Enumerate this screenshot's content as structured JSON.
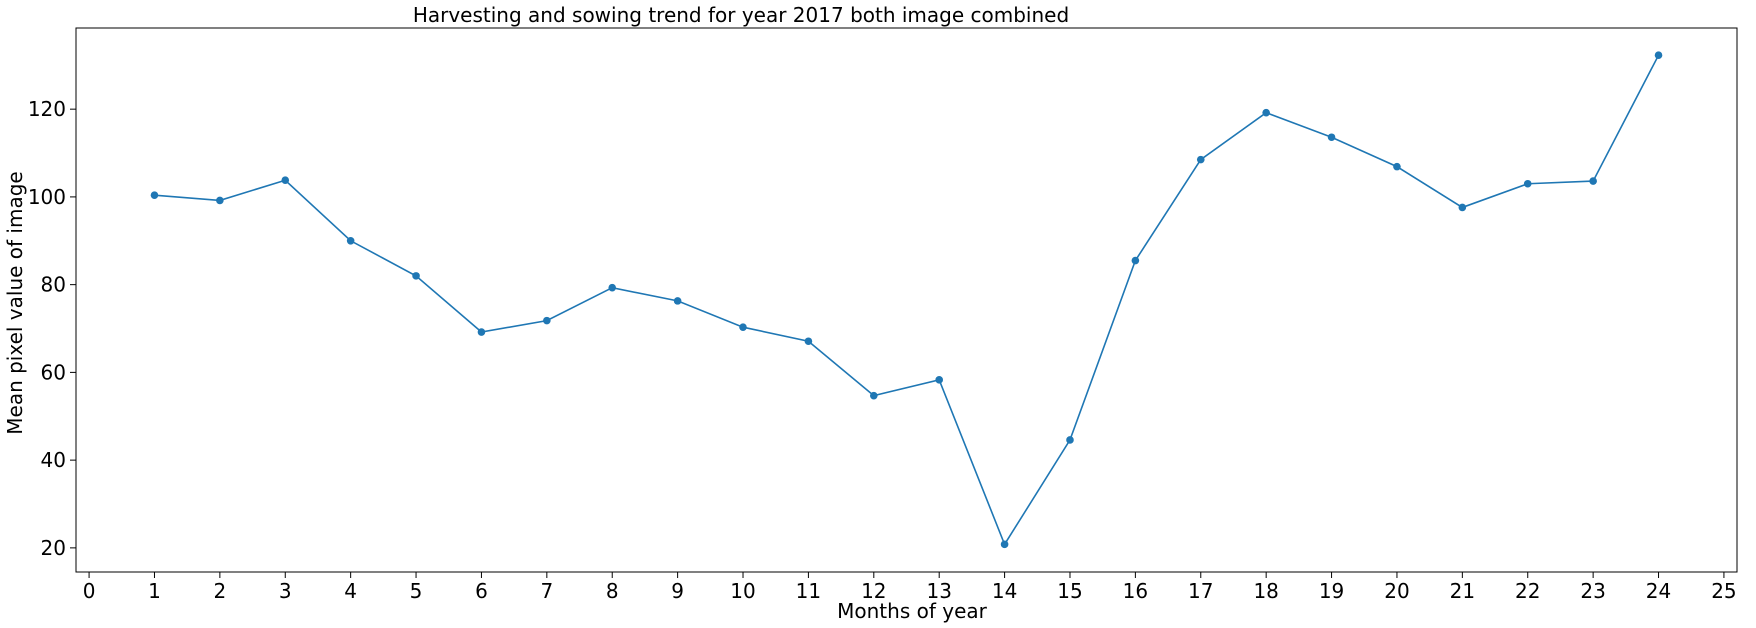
{
  "chart_data": {
    "type": "line",
    "title": "Harvesting and sowing trend for year 2017 both image combined",
    "xlabel": "Months of year",
    "ylabel": "Mean pixel value of image",
    "xlim": [
      -0.2,
      25.2
    ],
    "ylim": [
      14.5,
      138.5
    ],
    "xticks": [
      0,
      1,
      2,
      3,
      4,
      5,
      6,
      7,
      8,
      9,
      10,
      11,
      12,
      13,
      14,
      15,
      16,
      17,
      18,
      19,
      20,
      21,
      22,
      23,
      24,
      25
    ],
    "yticks": [
      20,
      40,
      60,
      80,
      100,
      120
    ],
    "grid": false,
    "color": "#1f77b4",
    "x": [
      1,
      2,
      3,
      4,
      5,
      6,
      7,
      8,
      9,
      10,
      11,
      12,
      13,
      14,
      15,
      16,
      17,
      18,
      19,
      20,
      21,
      22,
      23,
      24
    ],
    "y": [
      100.4,
      99.2,
      103.8,
      90.0,
      82.0,
      69.2,
      71.8,
      79.3,
      76.3,
      70.3,
      67.1,
      54.7,
      58.3,
      20.8,
      44.6,
      85.5,
      108.5,
      119.2,
      113.6,
      106.9,
      97.6,
      103.0,
      103.6,
      132.3
    ]
  }
}
